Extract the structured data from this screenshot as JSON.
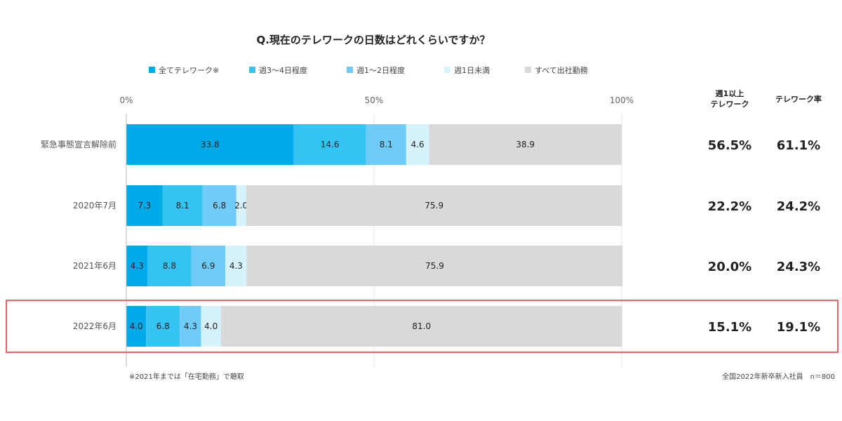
{
  "chart_data": {
    "type": "bar",
    "orientation": "horizontal",
    "stacked": true,
    "title": "Q.現在のテレワークの日数はどれくらいですか？",
    "categories": [
      "緊急事態宣言解除前",
      "2020年7月",
      "2021年6月",
      "2022年6月"
    ],
    "series": [
      {
        "name": "全てテレワーク※",
        "color": "#00A9E8",
        "values": [
          33.8,
          7.3,
          4.3,
          4.0
        ]
      },
      {
        "name": "週3～4日程度",
        "color": "#33C4F3",
        "values": [
          14.6,
          8.1,
          8.8,
          6.8
        ]
      },
      {
        "name": "週1～2日程度",
        "color": "#6FCBF7",
        "values": [
          8.1,
          6.8,
          6.9,
          4.3
        ]
      },
      {
        "name": "週1日未満",
        "color": "#D6F3FD",
        "values": [
          4.6,
          2.0,
          4.3,
          4.0
        ]
      },
      {
        "name": "すべて出社勤務",
        "color": "#D9D9D9",
        "values": [
          38.9,
          75.9,
          75.9,
          81.0
        ]
      }
    ],
    "xlim": [
      0,
      100
    ],
    "x_ticks": [
      "0%",
      "50%",
      "100%"
    ],
    "grid": true,
    "legend_position": "top",
    "highlighted_category": "2022年6月",
    "highlight_color": "#E06A6A"
  },
  "summary": {
    "col1_header": [
      "週1以上",
      "テレワーク"
    ],
    "col2_header": "テレワーク率",
    "col1_values": [
      "56.5%",
      "22.2%",
      "20.0%",
      "15.1%"
    ],
    "col2_values": [
      "61.1%",
      "24.2%",
      "24.3%",
      "19.1%"
    ]
  },
  "footnote": "※2021年までは「在宅勤務」で聴取",
  "source": "全国2022年新卒新入社員　n＝800"
}
